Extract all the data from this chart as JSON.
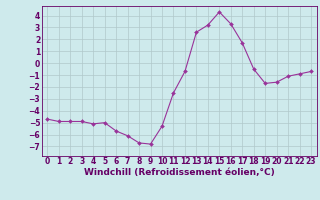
{
  "x": [
    0,
    1,
    2,
    3,
    4,
    5,
    6,
    7,
    8,
    9,
    10,
    11,
    12,
    13,
    14,
    15,
    16,
    17,
    18,
    19,
    20,
    21,
    22,
    23
  ],
  "y": [
    -4.7,
    -4.9,
    -4.9,
    -4.9,
    -5.1,
    -5.0,
    -5.7,
    -6.1,
    -6.7,
    -6.8,
    -5.3,
    -2.5,
    -0.7,
    2.6,
    3.2,
    4.3,
    3.3,
    1.7,
    -0.5,
    -1.7,
    -1.6,
    -1.1,
    -0.9,
    -0.7
  ],
  "line_color": "#993399",
  "marker": "D",
  "marker_size": 2.0,
  "bg_color": "#ceeaec",
  "grid_color": "#b0c8ca",
  "xlabel": "Windchill (Refroidissement éolien,°C)",
  "ylim": [
    -7.8,
    4.8
  ],
  "xlim": [
    -0.5,
    23.5
  ],
  "yticks": [
    -7,
    -6,
    -5,
    -4,
    -3,
    -2,
    -1,
    0,
    1,
    2,
    3,
    4
  ],
  "xticks": [
    0,
    1,
    2,
    3,
    4,
    5,
    6,
    7,
    8,
    9,
    10,
    11,
    12,
    13,
    14,
    15,
    16,
    17,
    18,
    19,
    20,
    21,
    22,
    23
  ],
  "label_color": "#660066",
  "tick_fontsize": 5.5,
  "xlabel_fontsize": 6.5,
  "spine_color": "#660066"
}
